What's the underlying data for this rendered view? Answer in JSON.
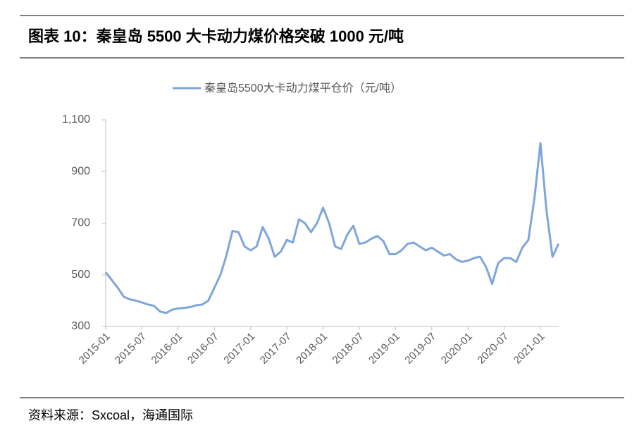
{
  "title": "图表 10：秦皇岛 5500 大卡动力煤价格突破 1000 元/吨",
  "source": "资料来源：Sxcoal，海通国际",
  "chart_data": {
    "type": "line",
    "categories": [
      "2015-01",
      null,
      null,
      null,
      null,
      null,
      "2015-07",
      null,
      null,
      null,
      null,
      null,
      "2016-01",
      null,
      null,
      null,
      null,
      null,
      "2016-07",
      null,
      null,
      null,
      null,
      null,
      "2017-01",
      null,
      null,
      null,
      null,
      null,
      "2017-07",
      null,
      null,
      null,
      null,
      null,
      "2018-01",
      null,
      null,
      null,
      null,
      null,
      "2018-07",
      null,
      null,
      null,
      null,
      null,
      "2019-01",
      null,
      null,
      null,
      null,
      null,
      "2019-07",
      null,
      null,
      null,
      null,
      null,
      "2020-01",
      null,
      null,
      null,
      null,
      null,
      "2020-07",
      null,
      null,
      null,
      null,
      null,
      "2021-01",
      null,
      null,
      null
    ],
    "series": [
      {
        "name": "秦皇岛5500大卡动力煤平仓价（元/吨）",
        "color": "#7ea6dc",
        "values": [
          510,
          480,
          450,
          415,
          405,
          400,
          393,
          385,
          380,
          358,
          352,
          365,
          370,
          372,
          375,
          382,
          385,
          400,
          450,
          500,
          575,
          670,
          665,
          610,
          595,
          610,
          685,
          640,
          570,
          590,
          635,
          625,
          715,
          700,
          665,
          700,
          760,
          700,
          610,
          600,
          655,
          690,
          620,
          625,
          640,
          650,
          630,
          580,
          580,
          595,
          620,
          625,
          610,
          595,
          605,
          590,
          575,
          580,
          560,
          550,
          555,
          565,
          570,
          530,
          465,
          545,
          565,
          565,
          550,
          605,
          635,
          795,
          1010,
          750,
          570,
          620
        ]
      }
    ],
    "ylim": [
      300,
      1100
    ],
    "yticks": [
      300,
      500,
      700,
      900,
      {
        "value": 1100,
        "label": "1,100"
      }
    ],
    "legend": "top"
  }
}
